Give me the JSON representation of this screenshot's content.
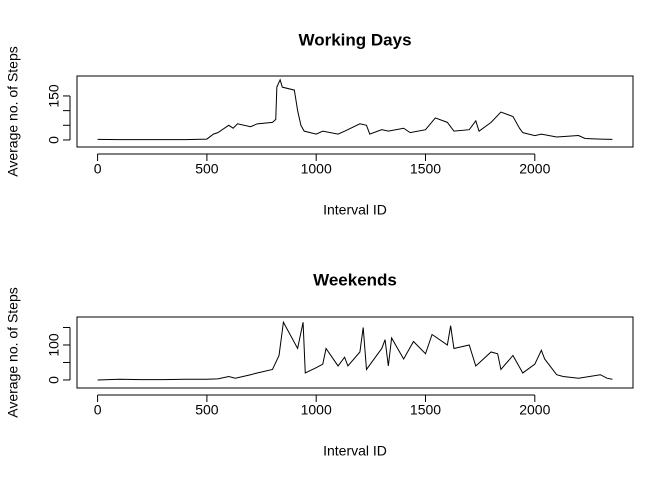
{
  "chart_data": [
    {
      "type": "line",
      "title": "Working Days",
      "xlabel": "Interval ID",
      "ylabel": "Average no. of Steps",
      "x": [
        0,
        100,
        200,
        300,
        400,
        500,
        530,
        550,
        600,
        620,
        640,
        700,
        730,
        800,
        815,
        820,
        835,
        845,
        900,
        915,
        930,
        945,
        1000,
        1030,
        1100,
        1130,
        1200,
        1230,
        1245,
        1300,
        1330,
        1400,
        1430,
        1500,
        1545,
        1600,
        1630,
        1700,
        1730,
        1745,
        1800,
        1845,
        1900,
        1930,
        1945,
        2000,
        2030,
        2100,
        2200,
        2230,
        2300,
        2355
      ],
      "series": [
        {
          "color": "#000000",
          "values": [
            2,
            1,
            1,
            1,
            1,
            3,
            20,
            25,
            50,
            40,
            55,
            45,
            55,
            60,
            70,
            180,
            205,
            180,
            170,
            100,
            50,
            30,
            20,
            30,
            20,
            30,
            55,
            50,
            20,
            35,
            30,
            40,
            25,
            35,
            75,
            60,
            30,
            35,
            65,
            30,
            60,
            95,
            80,
            40,
            25,
            15,
            20,
            10,
            15,
            5,
            3,
            2
          ]
        }
      ],
      "xlim": [
        -94.2,
        2449.2
      ],
      "xticks": [
        0,
        500,
        1000,
        1500,
        2000
      ],
      "ylim": [
        -24,
        218
      ],
      "yticks": [
        0,
        {
          "value": 50,
          "label": null
        },
        {
          "value": 100,
          "label": null
        },
        150
      ]
    },
    {
      "type": "line",
      "title": "Weekends",
      "xlabel": "Interval ID",
      "ylabel": "Average no. of Steps",
      "x": [
        0,
        100,
        200,
        300,
        400,
        500,
        550,
        600,
        630,
        700,
        730,
        800,
        830,
        850,
        915,
        940,
        950,
        1000,
        1030,
        1045,
        1100,
        1130,
        1145,
        1200,
        1215,
        1230,
        1300,
        1315,
        1330,
        1345,
        1400,
        1445,
        1500,
        1530,
        1600,
        1615,
        1630,
        1700,
        1730,
        1800,
        1830,
        1845,
        1900,
        1945,
        2000,
        2030,
        2045,
        2100,
        2130,
        2200,
        2300,
        2330,
        2355
      ],
      "series": [
        {
          "color": "#000000",
          "values": [
            0,
            2,
            1,
            1,
            2,
            2,
            3,
            10,
            5,
            15,
            20,
            30,
            70,
            165,
            90,
            165,
            20,
            35,
            45,
            90,
            40,
            65,
            40,
            80,
            150,
            30,
            90,
            115,
            40,
            120,
            60,
            110,
            75,
            130,
            100,
            155,
            90,
            100,
            40,
            80,
            75,
            30,
            70,
            20,
            45,
            85,
            60,
            15,
            10,
            5,
            15,
            5,
            2
          ]
        }
      ],
      "xlim": [
        -94.2,
        2449.2
      ],
      "xticks": [
        0,
        500,
        1000,
        1500,
        2000
      ],
      "ylim": [
        -23,
        180
      ],
      "yticks": [
        0,
        {
          "value": 50,
          "label": null
        },
        100,
        {
          "value": 150,
          "label": null
        }
      ]
    }
  ]
}
